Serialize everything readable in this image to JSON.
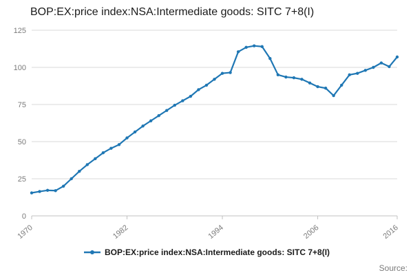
{
  "title": "BOP:EX:price index:NSA:Intermediate goods: SITC 7+8(I)",
  "legend": {
    "label": "BOP:EX:price index:NSA:Intermediate goods: SITC 7+8(I)"
  },
  "source": {
    "label": "Source:"
  },
  "chart_data": {
    "type": "line",
    "title": "BOP:EX:price index:NSA:Intermediate goods: SITC 7+8(I)",
    "xlabel": "",
    "ylabel": "",
    "xlim": [
      1970,
      2016
    ],
    "ylim": [
      0,
      125
    ],
    "grid": "horizontal",
    "legend_position": "bottom",
    "x_ticks": [
      1970,
      1982,
      1994,
      2006,
      2016
    ],
    "x_tick_labels": [
      "1970",
      "1982",
      "1994",
      "2006",
      "2016"
    ],
    "y_ticks": [
      0,
      25,
      50,
      75,
      100,
      125
    ],
    "x": [
      1970,
      1971,
      1972,
      1973,
      1974,
      1975,
      1976,
      1977,
      1978,
      1979,
      1980,
      1981,
      1982,
      1983,
      1984,
      1985,
      1986,
      1987,
      1988,
      1989,
      1990,
      1991,
      1992,
      1993,
      1994,
      1995,
      1996,
      1997,
      1998,
      1999,
      2000,
      2001,
      2002,
      2003,
      2004,
      2005,
      2006,
      2007,
      2008,
      2009,
      2010,
      2011,
      2012,
      2013,
      2014,
      2015,
      2016
    ],
    "series": [
      {
        "name": "BOP:EX:price index:NSA:Intermediate goods: SITC 7+8(I)",
        "values": [
          15.5,
          16.4,
          17.2,
          17.0,
          20.0,
          25.0,
          30.0,
          34.5,
          38.5,
          42.5,
          45.5,
          48.0,
          52.5,
          56.5,
          60.5,
          64.0,
          67.5,
          71.0,
          74.5,
          77.5,
          80.5,
          85.0,
          88.0,
          92.0,
          96.0,
          96.5,
          110.5,
          113.5,
          114.5,
          114.0,
          106.0,
          95.0,
          93.5,
          93.0,
          92.0,
          89.5,
          87.0,
          86.0,
          81.0,
          88.0,
          95.0,
          96.0,
          98.0,
          100.0,
          103.0,
          100.5,
          107.0
        ]
      }
    ],
    "line_color": "#1f77b4",
    "marker_color": "#1f77b4",
    "grid_color": "#d9d9d9",
    "axis_color": "#c0c0c0",
    "tick_label_color": "#7a7a7a"
  }
}
